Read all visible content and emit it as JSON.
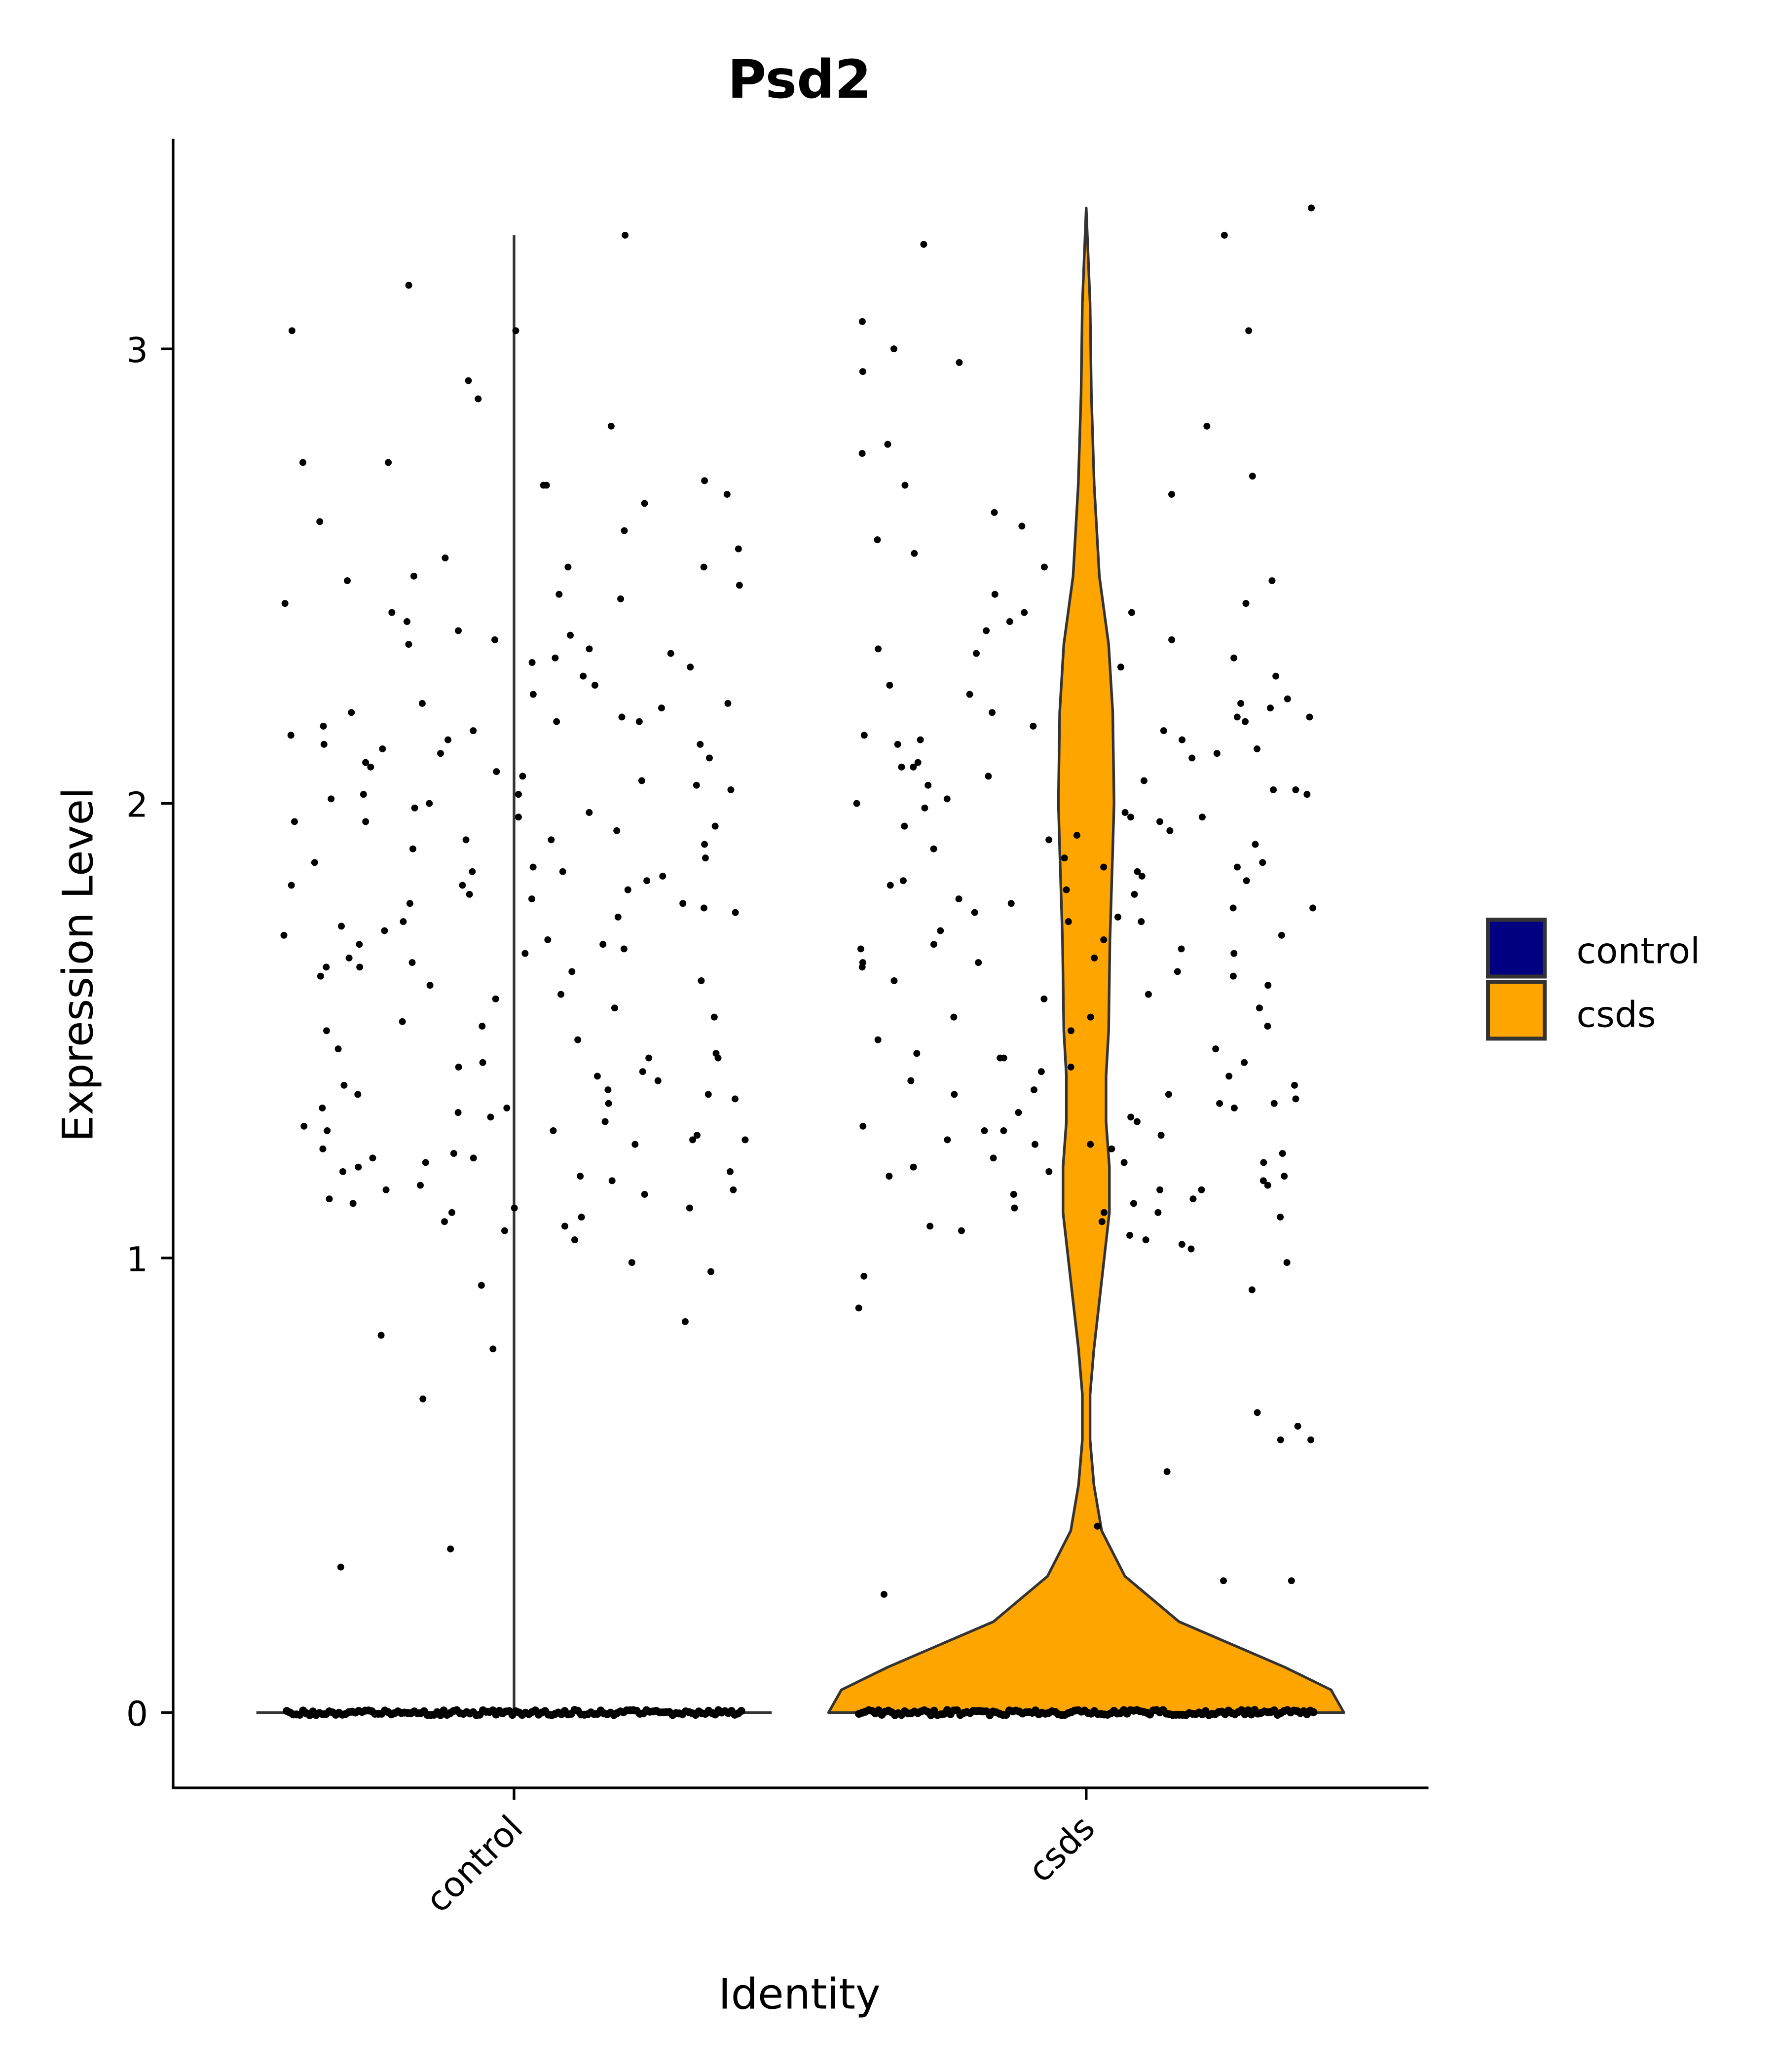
{
  "chart_data": {
    "type": "violin",
    "title": "Psd2",
    "xlabel": "Identity",
    "ylabel": "Expression Level",
    "ylim": [
      -0.17,
      3.5
    ],
    "yticks": [
      0,
      1,
      2,
      3
    ],
    "ytick_labels": [
      "0",
      "1",
      "2",
      "3"
    ],
    "categories": [
      "control",
      "csds"
    ],
    "colors": {
      "control": "#000080",
      "csds": "#FFA500",
      "outline": "#333333",
      "points": "#000000"
    },
    "legend": {
      "placement": "right",
      "entries": [
        {
          "label": "control",
          "color": "#000080"
        },
        {
          "label": "csds",
          "color": "#FFA500"
        }
      ]
    },
    "series": [
      {
        "name": "control",
        "violin_density": [
          [
            0,
            1.0
          ],
          [
            0.02,
            0.0
          ],
          [
            3.25,
            0.0
          ]
        ],
        "zero_points": 140,
        "nonzero_values": [
          3.25,
          3.14,
          3.04,
          3.04,
          2.93,
          2.89,
          2.83,
          2.75,
          2.75,
          2.71,
          2.7,
          2.7,
          2.68,
          2.66,
          2.62,
          2.6,
          2.56,
          2.54,
          2.52,
          2.52,
          2.5,
          2.49,
          2.48,
          2.46,
          2.44,
          2.42,
          2.4,
          2.38,
          2.37,
          2.36,
          2.35,
          2.34,
          2.33,
          2.32,
          2.3,
          2.28,
          2.26,
          2.24,
          2.22,
          2.21,
          2.2,
          2.19,
          2.18,
          2.17,
          2.16,
          2.15,
          2.14,
          2.13,
          2.12,
          2.11,
          2.1,
          2.09,
          2.08,
          2.06,
          2.05,
          2.04,
          2.03,
          2.02,
          2.01,
          2.0,
          1.99,
          1.98,
          1.97,
          1.96,
          1.95,
          1.94,
          1.92,
          1.91,
          1.9,
          1.88,
          1.87,
          1.86,
          1.85,
          1.84,
          1.83,
          1.82,
          1.81,
          1.8,
          1.79,
          1.78,
          1.77,
          1.76,
          1.75,
          1.74,
          1.72,
          1.71,
          1.7,
          1.69,
          1.68,
          1.67,
          1.66,
          1.65,
          1.64,
          1.63,
          1.62,
          1.61,
          1.6,
          1.58,
          1.57,
          1.55,
          1.53,
          1.51,
          1.5,
          1.48,
          1.46,
          1.45,
          1.44,
          1.43,
          1.42,
          1.41,
          1.4,
          1.39,
          1.38,
          1.37,
          1.36,
          1.35,
          1.34,
          1.33,
          1.32,
          1.31,
          1.3,
          1.29,
          1.28,
          1.27,
          1.26,
          1.25,
          1.24,
          1.23,
          1.22,
          1.21,
          1.2,
          1.19,
          1.18,
          1.17,
          1.16,
          1.15,
          1.14,
          1.13,
          1.12,
          1.11,
          1.1,
          1.09,
          1.08,
          1.07,
          1.06,
          1.04,
          0.99,
          0.97,
          0.94,
          0.86,
          0.83,
          0.8,
          0.69,
          0.36,
          0.32,
          2.45,
          2.22,
          2.13,
          2.02,
          1.92,
          1.82,
          1.73,
          1.64,
          1.52,
          1.44,
          1.36,
          1.28,
          1.22,
          1.15,
          1.11,
          2.31,
          2.18,
          2.07,
          1.96,
          1.85,
          1.78,
          1.69,
          1.33,
          1.26,
          1.19
        ]
      },
      {
        "name": "csds",
        "violin_density": [
          [
            0,
            1.0
          ],
          [
            0.05,
            0.95
          ],
          [
            0.1,
            0.77
          ],
          [
            0.2,
            0.36
          ],
          [
            0.3,
            0.15
          ],
          [
            0.4,
            0.06
          ],
          [
            0.5,
            0.03
          ],
          [
            0.6,
            0.015
          ],
          [
            0.7,
            0.015
          ],
          [
            0.8,
            0.03
          ],
          [
            0.9,
            0.05
          ],
          [
            1.0,
            0.07
          ],
          [
            1.1,
            0.09
          ],
          [
            1.2,
            0.09
          ],
          [
            1.3,
            0.077
          ],
          [
            1.4,
            0.077
          ],
          [
            1.5,
            0.087
          ],
          [
            1.7,
            0.092
          ],
          [
            1.9,
            0.103
          ],
          [
            2.0,
            0.108
          ],
          [
            2.2,
            0.103
          ],
          [
            2.35,
            0.087
          ],
          [
            2.5,
            0.051
          ],
          [
            2.7,
            0.031
          ],
          [
            2.9,
            0.02
          ],
          [
            3.1,
            0.015
          ],
          [
            3.31,
            0.0
          ]
        ],
        "zero_points": 140,
        "nonzero_values": [
          3.31,
          3.25,
          3.23,
          3.06,
          3.04,
          3.0,
          2.97,
          2.95,
          2.83,
          2.79,
          2.77,
          2.72,
          2.7,
          2.68,
          2.64,
          2.61,
          2.58,
          2.55,
          2.52,
          2.49,
          2.46,
          2.44,
          2.42,
          2.4,
          2.38,
          2.36,
          2.34,
          2.32,
          2.3,
          2.28,
          2.26,
          2.24,
          2.22,
          2.21,
          2.2,
          2.19,
          2.18,
          2.17,
          2.16,
          2.15,
          2.14,
          2.13,
          2.12,
          2.11,
          2.1,
          2.09,
          2.08,
          2.06,
          2.05,
          2.04,
          2.03,
          2.02,
          2.01,
          2.0,
          1.99,
          1.98,
          1.97,
          1.96,
          1.95,
          1.94,
          1.92,
          1.91,
          1.9,
          1.88,
          1.87,
          1.86,
          1.85,
          1.84,
          1.83,
          1.82,
          1.81,
          1.8,
          1.79,
          1.78,
          1.77,
          1.76,
          1.75,
          1.74,
          1.72,
          1.71,
          1.7,
          1.69,
          1.68,
          1.67,
          1.66,
          1.65,
          1.64,
          1.63,
          1.62,
          1.61,
          1.6,
          1.58,
          1.57,
          1.55,
          1.53,
          1.51,
          1.5,
          1.48,
          1.46,
          1.45,
          1.44,
          1.43,
          1.42,
          1.41,
          1.4,
          1.39,
          1.38,
          1.37,
          1.36,
          1.35,
          1.34,
          1.33,
          1.32,
          1.31,
          1.3,
          1.29,
          1.28,
          1.27,
          1.26,
          1.25,
          1.24,
          1.23,
          1.22,
          1.21,
          1.2,
          1.19,
          1.18,
          1.17,
          1.16,
          1.15,
          1.14,
          1.13,
          1.12,
          1.11,
          1.1,
          1.09,
          1.08,
          1.07,
          1.06,
          1.05,
          1.04,
          1.03,
          1.02,
          0.99,
          0.96,
          0.93,
          0.89,
          0.66,
          0.63,
          0.6,
          0.6,
          0.53,
          0.41,
          0.29,
          0.29,
          0.26,
          2.42,
          2.23,
          2.14,
          2.03,
          1.93,
          1.83,
          1.74,
          1.65,
          1.53,
          1.44,
          1.36,
          1.28,
          1.21,
          1.15,
          1.1,
          2.33,
          2.19,
          2.08,
          1.97,
          1.86,
          1.77,
          1.68,
          1.34,
          1.25,
          1.18
        ]
      }
    ]
  }
}
